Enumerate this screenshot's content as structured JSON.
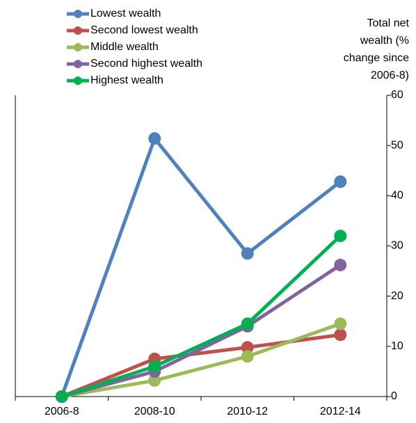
{
  "chart_data": {
    "type": "line",
    "y_label": [
      "Total net",
      "wealth (%",
      "change since",
      "2006-8)"
    ],
    "categories": [
      "2006-8",
      "2008-10",
      "2010-12",
      "2012-14"
    ],
    "series": [
      {
        "name": "Lowest wealth",
        "color": "#4f81bd",
        "values": [
          0,
          51.4,
          28.5,
          42.8
        ]
      },
      {
        "name": "Second lowest wealth",
        "color": "#c0504d",
        "values": [
          0,
          7.5,
          9.8,
          12.3
        ]
      },
      {
        "name": "Middle wealth",
        "color": "#9bbb59",
        "values": [
          0,
          3.2,
          8.0,
          14.5
        ]
      },
      {
        "name": "Second highest wealth",
        "color": "#8064a2",
        "values": [
          0,
          5.0,
          14.0,
          26.2
        ]
      },
      {
        "name": "Highest wealth",
        "color": "#00b050",
        "values": [
          0,
          6.0,
          14.5,
          32.0
        ]
      }
    ],
    "ylim": [
      0,
      60
    ],
    "yticks": [
      0,
      10,
      20,
      30,
      40,
      50,
      60
    ],
    "legend": "top-left"
  }
}
